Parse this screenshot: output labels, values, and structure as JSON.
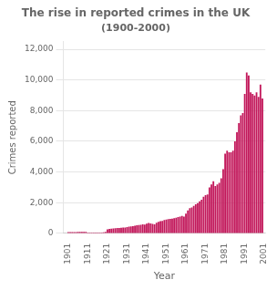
{
  "chart_data": {
    "type": "bar",
    "title": "The rise in reported crimes in the UK",
    "subtitle": "(1900-2000)",
    "x_label": "Year",
    "y_label": "Crimes reported",
    "color": "#C2185B",
    "grid": true,
    "xlim": [
      1898.5,
      2001.5
    ],
    "xticks": [
      1901,
      1911,
      1921,
      1931,
      1941,
      1951,
      1961,
      1971,
      1981,
      1991,
      2001
    ],
    "ylim": [
      0,
      12500
    ],
    "yticks": [
      0,
      {
        "value": 2000,
        "label": "2,000"
      },
      {
        "value": 4000,
        "label": "4,000"
      },
      {
        "value": 6000,
        "label": "6,000"
      },
      {
        "value": 8000,
        "label": "8,000"
      },
      {
        "value": 10000,
        "label": "10,000"
      },
      {
        "value": 12000,
        "label": "12,000"
      }
    ],
    "x": [
      1901,
      1902,
      1903,
      1904,
      1905,
      1906,
      1907,
      1908,
      1909,
      1910,
      1911,
      1912,
      1913,
      1914,
      1915,
      1916,
      1917,
      1918,
      1919,
      1920,
      1921,
      1922,
      1923,
      1924,
      1925,
      1926,
      1927,
      1928,
      1929,
      1930,
      1931,
      1932,
      1933,
      1934,
      1935,
      1936,
      1937,
      1938,
      1939,
      1940,
      1941,
      1942,
      1943,
      1944,
      1945,
      1946,
      1947,
      1948,
      1949,
      1950,
      1951,
      1952,
      1953,
      1954,
      1955,
      1956,
      1957,
      1958,
      1959,
      1960,
      1961,
      1962,
      1963,
      1964,
      1965,
      1966,
      1967,
      1968,
      1969,
      1970,
      1971,
      1972,
      1973,
      1974,
      1975,
      1976,
      1977,
      1978,
      1979,
      1980,
      1981,
      1982,
      1983,
      1984,
      1985,
      1986,
      1987,
      1988,
      1989,
      1990,
      1991,
      1992,
      1993,
      1994,
      1995,
      1996,
      1997,
      1998,
      1999,
      2000
    ],
    "values": [
      80,
      82,
      85,
      88,
      90,
      92,
      95,
      95,
      98,
      100,
      50,
      52,
      55,
      58,
      55,
      52,
      50,
      48,
      65,
      95,
      265,
      290,
      305,
      315,
      330,
      345,
      355,
      365,
      375,
      385,
      410,
      435,
      455,
      475,
      505,
      525,
      545,
      565,
      595,
      575,
      640,
      670,
      645,
      615,
      595,
      690,
      750,
      790,
      815,
      870,
      895,
      925,
      945,
      965,
      995,
      1025,
      1065,
      1095,
      1145,
      1090,
      1290,
      1490,
      1640,
      1690,
      1790,
      1890,
      1970,
      2090,
      2190,
      2380,
      2490,
      2540,
      2990,
      3190,
      3390,
      3090,
      3190,
      3290,
      3590,
      4190,
      5190,
      5390,
      5290,
      5290,
      5390,
      5990,
      6590,
      7190,
      7690,
      7840,
      9090,
      10490,
      10290,
      9190,
      9090,
      8990,
      9190,
      8890,
      9690,
      8790
    ]
  }
}
